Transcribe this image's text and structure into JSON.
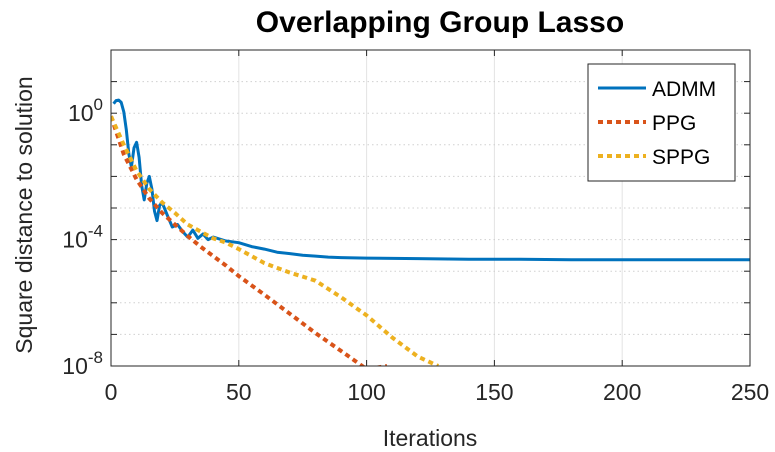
{
  "chart_data": {
    "type": "line",
    "title": "Overlapping Group Lasso",
    "xlabel": "Iterations",
    "ylabel": "Square distance to solution",
    "xlim": [
      0,
      250
    ],
    "ylim": [
      1e-08,
      100
    ],
    "yscale": "log",
    "grid": true,
    "legend_position": "top-right",
    "x_ticks": [
      "0",
      "50",
      "100",
      "150",
      "200",
      "250"
    ],
    "y_ticks": [
      {
        "base": "10",
        "exp": "0"
      },
      {
        "base": "10",
        "exp": "-4"
      },
      {
        "base": "10",
        "exp": "-8"
      }
    ],
    "series": [
      {
        "name": "ADMM",
        "color": "#0072BD",
        "style": "solid",
        "x": [
          1,
          2,
          3,
          4,
          5,
          6,
          7,
          8,
          9,
          10,
          11,
          12,
          13,
          14,
          15,
          16,
          17,
          18,
          19,
          20,
          22,
          24,
          26,
          28,
          30,
          32,
          34,
          36,
          38,
          40,
          45,
          50,
          55,
          60,
          65,
          70,
          75,
          80,
          85,
          90,
          100,
          120,
          140,
          160,
          180,
          200,
          220,
          250
        ],
        "y": [
          2.0,
          2.5,
          2.6,
          2.2,
          1.1,
          0.3,
          0.05,
          0.02,
          0.08,
          0.12,
          0.04,
          0.005,
          0.0018,
          0.006,
          0.01,
          0.004,
          0.0008,
          0.0004,
          0.0012,
          0.0015,
          0.0006,
          0.00025,
          0.0003,
          0.00018,
          0.00012,
          0.0002,
          0.00011,
          0.00015,
          0.0001,
          0.00012,
          9e-05,
          8e-05,
          6e-05,
          5e-05,
          4e-05,
          3.6e-05,
          3.2e-05,
          3e-05,
          2.8e-05,
          2.7e-05,
          2.6e-05,
          2.5e-05,
          2.4e-05,
          2.4e-05,
          2.3e-05,
          2.3e-05,
          2.3e-05,
          2.3e-05
        ]
      },
      {
        "name": "PPG",
        "color": "#D95319",
        "style": "dotted",
        "x": [
          0,
          5,
          10,
          15,
          20,
          25,
          30,
          35,
          40,
          45,
          50,
          60,
          70,
          80,
          90,
          100,
          108
        ],
        "y": [
          0.8,
          0.05,
          0.008,
          0.002,
          0.0007,
          0.0003,
          0.00013,
          6e-05,
          3e-05,
          1.5e-05,
          7e-06,
          1.8e-06,
          4.5e-07,
          1.1e-07,
          3e-08,
          8e-09,
          1e-08
        ]
      },
      {
        "name": "SPPG",
        "color": "#EDB120",
        "style": "dotted",
        "x": [
          0,
          5,
          10,
          15,
          20,
          25,
          30,
          35,
          40,
          45,
          50,
          55,
          60,
          70,
          80,
          90,
          100,
          110,
          120,
          128
        ],
        "y": [
          0.8,
          0.1,
          0.015,
          0.004,
          0.0015,
          0.0007,
          0.0003,
          0.00018,
          0.00011,
          8e-05,
          5e-05,
          3e-05,
          1.8e-05,
          9e-06,
          5e-06,
          1.5e-06,
          4e-07,
          8e-08,
          2e-08,
          1e-08
        ]
      }
    ]
  }
}
